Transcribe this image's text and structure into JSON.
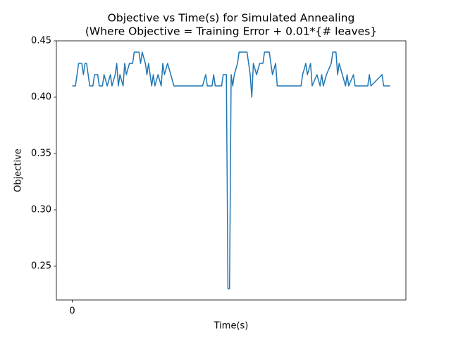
{
  "chart_data": {
    "type": "line",
    "title": [
      "Objective vs Time(s) for Simulated Annealing",
      "(Where Objective = Training Error + 0.01*{# leaves}"
    ],
    "xlabel": "Time(s)",
    "ylabel": "Objective",
    "x": [
      0,
      1,
      1.5,
      2,
      3,
      3.5,
      4,
      4.5,
      5,
      5.5,
      6.5,
      7,
      8,
      8.5,
      9.5,
      10,
      11,
      12,
      12.5,
      13.5,
      14,
      14.5,
      15,
      16,
      16.5,
      17,
      18,
      19,
      19.5,
      21,
      21.5,
      22,
      23,
      23.5,
      24,
      25,
      25.5,
      26,
      27,
      28,
      28.5,
      29,
      30,
      31,
      32,
      41,
      42,
      42.5,
      44,
      44.5,
      45,
      47,
      47.5,
      48.5,
      49,
      49.5,
      50,
      50.5,
      51,
      52,
      52.5,
      55,
      55.5,
      56,
      56.5,
      57,
      58,
      59,
      60,
      60.5,
      62,
      62.5,
      63,
      64,
      64.5,
      72,
      72.5,
      73.5,
      74,
      75,
      75.5,
      77,
      78,
      78.5,
      79,
      80,
      81.5,
      82,
      83,
      83.5,
      84,
      85,
      86,
      86.5,
      87,
      88.5,
      89,
      93,
      93.5,
      94,
      97.5,
      98,
      100
    ],
    "series": [
      {
        "color": "#1f77b4",
        "values": [
          0.41,
          0.41,
          0.42,
          0.43,
          0.43,
          0.42,
          0.43,
          0.43,
          0.42,
          0.41,
          0.41,
          0.42,
          0.42,
          0.41,
          0.41,
          0.42,
          0.41,
          0.42,
          0.41,
          0.42,
          0.43,
          0.41,
          0.42,
          0.41,
          0.43,
          0.42,
          0.43,
          0.43,
          0.44,
          0.44,
          0.43,
          0.44,
          0.43,
          0.42,
          0.43,
          0.41,
          0.42,
          0.41,
          0.42,
          0.41,
          0.43,
          0.42,
          0.43,
          0.42,
          0.41,
          0.41,
          0.42,
          0.41,
          0.41,
          0.42,
          0.41,
          0.41,
          0.42,
          0.42,
          0.23,
          0.23,
          0.42,
          0.41,
          0.42,
          0.43,
          0.44,
          0.44,
          0.43,
          0.42,
          0.4,
          0.43,
          0.42,
          0.43,
          0.43,
          0.44,
          0.44,
          0.43,
          0.42,
          0.43,
          0.41,
          0.41,
          0.42,
          0.43,
          0.42,
          0.43,
          0.41,
          0.42,
          0.41,
          0.42,
          0.41,
          0.42,
          0.43,
          0.44,
          0.44,
          0.42,
          0.43,
          0.42,
          0.41,
          0.42,
          0.41,
          0.42,
          0.41,
          0.41,
          0.42,
          0.41,
          0.42,
          0.41,
          0.41
        ]
      }
    ],
    "xlim": [
      -5,
      105
    ],
    "xticks": [
      0
    ],
    "ylim": [
      0.22,
      0.45
    ],
    "yticks": [
      {
        "value": 0.25,
        "label": "0.25"
      },
      {
        "value": 0.3,
        "label": "0.30"
      },
      {
        "value": 0.35,
        "label": "0.35"
      },
      {
        "value": 0.4,
        "label": "0.40"
      },
      {
        "value": 0.45,
        "label": "0.45"
      }
    ]
  }
}
